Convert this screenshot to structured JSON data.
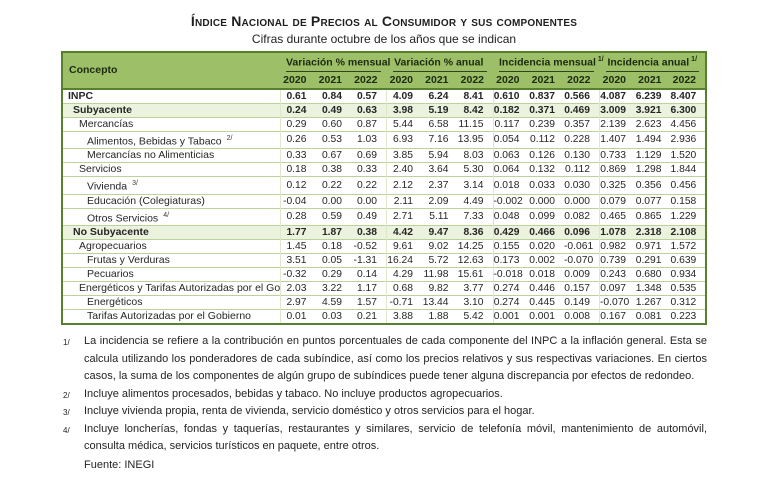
{
  "title": "Índice Nacional de Precios al Consumidor y sus componentes",
  "subtitle": "Cifras durante octubre de los años que se indican",
  "colors": {
    "header_green": "#9dbf68",
    "border_dark": "#567f2e",
    "shaded_row": "#ebf2dd"
  },
  "table": {
    "concept_header": "Concepto",
    "groups": [
      {
        "label": "Variación % mensual",
        "sup": ""
      },
      {
        "label": "Variación % anual",
        "sup": ""
      },
      {
        "label": "Incidencia mensual",
        "sup": "1/"
      },
      {
        "label": "Incidencia anual",
        "sup": "1/"
      }
    ],
    "years": [
      "2020",
      "2021",
      "2022"
    ],
    "rows": [
      {
        "label": "INPC",
        "sup": "",
        "indent": 0,
        "bold": true,
        "shaded": false,
        "values": [
          "0.61",
          "0.84",
          "0.57",
          "4.09",
          "6.24",
          "8.41",
          "0.610",
          "0.837",
          "0.566",
          "4.087",
          "6.239",
          "8.407"
        ]
      },
      {
        "label": "Subyacente",
        "sup": "",
        "indent": 1,
        "bold": true,
        "shaded": true,
        "values": [
          "0.24",
          "0.49",
          "0.63",
          "3.98",
          "5.19",
          "8.42",
          "0.182",
          "0.371",
          "0.469",
          "3.009",
          "3.921",
          "6.300"
        ]
      },
      {
        "label": "Mercancías",
        "sup": "",
        "indent": 2,
        "bold": false,
        "shaded": false,
        "values": [
          "0.29",
          "0.60",
          "0.87",
          "5.44",
          "6.58",
          "11.15",
          "0.117",
          "0.239",
          "0.357",
          "2.139",
          "2.623",
          "4.456"
        ]
      },
      {
        "label": "Alimentos, Bebidas y Tabaco",
        "sup": "2/",
        "indent": 3,
        "bold": false,
        "shaded": false,
        "values": [
          "0.26",
          "0.53",
          "1.03",
          "6.93",
          "7.16",
          "13.95",
          "0.054",
          "0.112",
          "0.228",
          "1.407",
          "1.494",
          "2.936"
        ]
      },
      {
        "label": "Mercancías no Alimenticias",
        "sup": "",
        "indent": 3,
        "bold": false,
        "shaded": false,
        "values": [
          "0.33",
          "0.67",
          "0.69",
          "3.85",
          "5.94",
          "8.03",
          "0.063",
          "0.126",
          "0.130",
          "0.733",
          "1.129",
          "1.520"
        ]
      },
      {
        "label": "Servicios",
        "sup": "",
        "indent": 2,
        "bold": false,
        "shaded": false,
        "values": [
          "0.18",
          "0.38",
          "0.33",
          "2.40",
          "3.64",
          "5.30",
          "0.064",
          "0.132",
          "0.112",
          "0.869",
          "1.298",
          "1.844"
        ]
      },
      {
        "label": "Vivienda",
        "sup": "3/",
        "indent": 3,
        "bold": false,
        "shaded": false,
        "values": [
          "0.12",
          "0.22",
          "0.22",
          "2.12",
          "2.37",
          "3.14",
          "0.018",
          "0.033",
          "0.030",
          "0.325",
          "0.356",
          "0.456"
        ]
      },
      {
        "label": "Educación (Colegiaturas)",
        "sup": "",
        "indent": 3,
        "bold": false,
        "shaded": false,
        "values": [
          "-0.04",
          "0.00",
          "0.00",
          "2.11",
          "2.09",
          "4.49",
          "-0.002",
          "0.000",
          "0.000",
          "0.079",
          "0.077",
          "0.158"
        ]
      },
      {
        "label": "Otros Servicios",
        "sup": "4/",
        "indent": 3,
        "bold": false,
        "shaded": false,
        "values": [
          "0.28",
          "0.59",
          "0.49",
          "2.71",
          "5.11",
          "7.33",
          "0.048",
          "0.099",
          "0.082",
          "0.465",
          "0.865",
          "1.229"
        ]
      },
      {
        "label": "No Subyacente",
        "sup": "",
        "indent": 1,
        "bold": true,
        "shaded": true,
        "values": [
          "1.77",
          "1.87",
          "0.38",
          "4.42",
          "9.47",
          "8.36",
          "0.429",
          "0.466",
          "0.096",
          "1.078",
          "2.318",
          "2.108"
        ]
      },
      {
        "label": "Agropecuarios",
        "sup": "",
        "indent": 2,
        "bold": false,
        "shaded": false,
        "values": [
          "1.45",
          "0.18",
          "-0.52",
          "9.61",
          "9.02",
          "14.25",
          "0.155",
          "0.020",
          "-0.061",
          "0.982",
          "0.971",
          "1.572"
        ]
      },
      {
        "label": "Frutas y Verduras",
        "sup": "",
        "indent": 3,
        "bold": false,
        "shaded": false,
        "values": [
          "3.51",
          "0.05",
          "-1.31",
          "16.24",
          "5.72",
          "12.63",
          "0.173",
          "0.002",
          "-0.070",
          "0.739",
          "0.291",
          "0.639"
        ]
      },
      {
        "label": "Pecuarios",
        "sup": "",
        "indent": 3,
        "bold": false,
        "shaded": false,
        "values": [
          "-0.32",
          "0.29",
          "0.14",
          "4.29",
          "11.98",
          "15.61",
          "-0.018",
          "0.018",
          "0.009",
          "0.243",
          "0.680",
          "0.934"
        ]
      },
      {
        "label": "Energéticos y Tarifas Autorizadas por el Gobierno",
        "sup": "",
        "indent": 2,
        "bold": false,
        "shaded": false,
        "values": [
          "2.03",
          "3.22",
          "1.17",
          "0.68",
          "9.82",
          "3.77",
          "0.274",
          "0.446",
          "0.157",
          "0.097",
          "1.348",
          "0.535"
        ]
      },
      {
        "label": "Energéticos",
        "sup": "",
        "indent": 3,
        "bold": false,
        "shaded": false,
        "values": [
          "2.97",
          "4.59",
          "1.57",
          "-0.71",
          "13.44",
          "3.10",
          "0.274",
          "0.445",
          "0.149",
          "-0.070",
          "1.267",
          "0.312"
        ]
      },
      {
        "label": "Tarifas Autorizadas por el Gobierno",
        "sup": "",
        "indent": 3,
        "bold": false,
        "shaded": false,
        "values": [
          "0.01",
          "0.03",
          "0.21",
          "3.88",
          "1.88",
          "5.42",
          "0.001",
          "0.001",
          "0.008",
          "0.167",
          "0.081",
          "0.223"
        ]
      }
    ]
  },
  "footnotes": [
    {
      "marker": "1/",
      "text": "La incidencia se refiere a la contribución en puntos porcentuales de cada componente del INPC a la inflación general. Esta se calcula utilizando los ponderadores de cada subíndice, así como los precios relativos y sus respectivas variaciones. En ciertos casos, la suma de los componentes de algún grupo de subíndices puede tener alguna discrepancia por efectos de redondeo."
    },
    {
      "marker": "2/",
      "text": "Incluye alimentos procesados, bebidas y tabaco. No incluye productos agropecuarios."
    },
    {
      "marker": "3/",
      "text": "Incluye vivienda propia, renta de vivienda, servicio doméstico y otros servicios para el hogar."
    },
    {
      "marker": "4/",
      "text": "Incluye loncherías, fondas y taquerías, restaurantes y similares, servicio de telefonía móvil, mantenimiento de automóvil, consulta médica, servicios turísticos en paquete, entre otros."
    }
  ],
  "source": "Fuente: INEGI"
}
